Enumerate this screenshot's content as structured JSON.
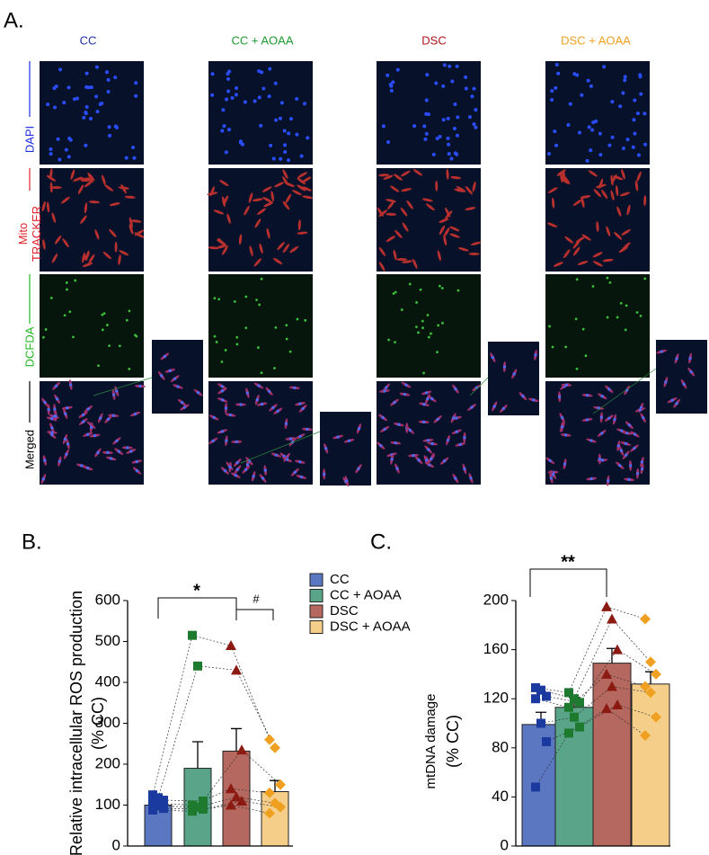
{
  "panel_a": {
    "label": "A.",
    "columns": [
      {
        "title": "CC",
        "color": "#1f2fa8"
      },
      {
        "title": "CC + AOAA",
        "color": "#1e9a2e"
      },
      {
        "title": "DSC",
        "color": "#b0151b"
      },
      {
        "title": "DSC + AOAA",
        "color": "#f0a020"
      }
    ],
    "rows": [
      {
        "lines": [
          "DAPI"
        ],
        "color": "#1a2ee0"
      },
      {
        "lines": [
          "Mito",
          "TRACKER"
        ],
        "color": "#e0202a"
      },
      {
        "lines": [
          "DCFDA"
        ],
        "color": "#22b822"
      },
      {
        "lines": [
          "Merged"
        ],
        "color": "#000000"
      }
    ]
  },
  "chart_data": [
    {
      "type": "bar",
      "panel_label": "B.",
      "y_label": [
        "Relative intracellular ROS production",
        "(% CC)"
      ],
      "ylim": [
        0,
        600
      ],
      "yticks": [
        0,
        100,
        200,
        300,
        400,
        500,
        600
      ],
      "annotations": [
        "*",
        "#"
      ],
      "series": [
        {
          "name": "CC",
          "color": "#5b77c2",
          "value": 100,
          "error": 8,
          "points": [
            125,
            118,
            112,
            105,
            98,
            92,
            88
          ]
        },
        {
          "name": "CC + AOAA",
          "color": "#5aa58a",
          "value": 190,
          "error": 65,
          "points": [
            515,
            440,
            110,
            100,
            95,
            90,
            85
          ]
        },
        {
          "name": "DSC",
          "color": "#b5685f",
          "value": 232,
          "error": 55,
          "points": [
            490,
            430,
            235,
            140,
            120,
            110,
            100
          ]
        },
        {
          "name": "DSC + AOAA",
          "color": "#f5cf8a",
          "value": 133,
          "error": 27,
          "points": [
            260,
            240,
            150,
            130,
            105,
            95,
            80
          ]
        }
      ]
    },
    {
      "type": "bar",
      "panel_label": "C.",
      "y_label": [
        "mtDNA damage",
        "(% CC)"
      ],
      "ylim": [
        0,
        200
      ],
      "yticks": [
        0,
        40,
        80,
        120,
        160,
        200
      ],
      "annotations": [
        "**"
      ],
      "colors": [
        "#5b77c2",
        "#5aa58a",
        "#b5685f",
        "#f5cf8a"
      ],
      "values": [
        99,
        113,
        149,
        132
      ],
      "errors": [
        10,
        8,
        12,
        10
      ],
      "points": [
        [
          129,
          127,
          122,
          120,
          100,
          85,
          48
        ],
        [
          125,
          120,
          117,
          113,
          105,
          97,
          92
        ],
        [
          195,
          185,
          160,
          140,
          130,
          115,
          112
        ],
        [
          185,
          150,
          140,
          130,
          125,
          105,
          90
        ]
      ]
    }
  ]
}
